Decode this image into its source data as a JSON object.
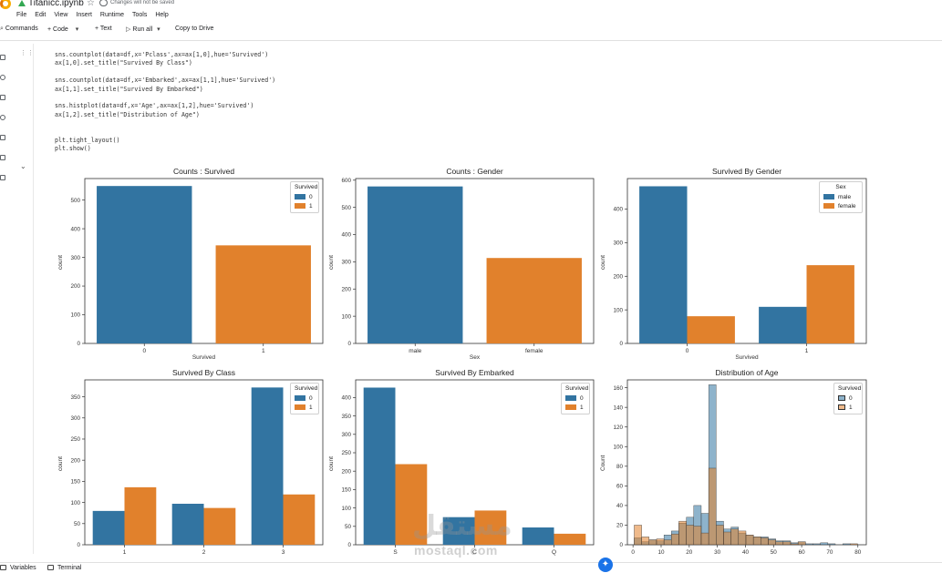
{
  "app": {
    "title": "Titanicc.ipynb",
    "save_status": "Changes will not be saved",
    "logo_icon": "colab-logo",
    "drive_icon": "google-drive-icon",
    "star_icon": "star-icon",
    "cloud_icon": "cloud-off-icon"
  },
  "menu": [
    "File",
    "Edit",
    "View",
    "Insert",
    "Runtime",
    "Tools",
    "Help"
  ],
  "toolbar": {
    "commands": "Commands",
    "code": "+ Code",
    "text": "+ Text",
    "run_all": "Run all",
    "copy_to_drive": "Copy to Drive"
  },
  "code_lines": [
    "sns.countplot(data=df,x='Pclass',ax=ax[1,0],hue='Survived')",
    "ax[1,0].set_title(\"Survived By Class\")",
    "",
    "sns.countplot(data=df,x='Embarked',ax=ax[1,1],hue='Survived')",
    "ax[1,1].set_title(\"Survived By Embarked\")",
    "",
    "sns.histplot(data=df,x='Age',ax=ax[1,2],hue='Survived')",
    "ax[1,2].set_title(\"Distribution of Age\")",
    "",
    "",
    "plt.tight_layout()",
    "plt.show()"
  ],
  "colors": {
    "blue": "#3274a1",
    "orange": "#e1812c"
  },
  "chart_data": [
    {
      "type": "bar",
      "title": "Counts : Survived",
      "xlabel": "Survived",
      "ylabel": "count",
      "categories": [
        "0",
        "1"
      ],
      "series": [
        {
          "values": [
            549,
            342
          ]
        }
      ],
      "bar_colors": [
        "#3274a1",
        "#e1812c"
      ],
      "ylim": [
        0,
        575
      ],
      "yticks": [
        0,
        100,
        200,
        300,
        400,
        500
      ],
      "legend": {
        "title": "Survived",
        "labels": [
          "0",
          "1"
        ],
        "position": "top-right"
      }
    },
    {
      "type": "bar",
      "title": "Counts : Gender",
      "xlabel": "Sex",
      "ylabel": "count",
      "categories": [
        "male",
        "female"
      ],
      "series": [
        {
          "values": [
            577,
            314
          ]
        }
      ],
      "bar_colors": [
        "#3274a1",
        "#e1812c"
      ],
      "ylim": [
        0,
        606
      ],
      "yticks": [
        0,
        100,
        200,
        300,
        400,
        500,
        600
      ]
    },
    {
      "type": "bar",
      "title": "Survived By Gender",
      "xlabel": "Survived",
      "ylabel": "count",
      "categories": [
        "0",
        "1"
      ],
      "series": [
        {
          "name": "male",
          "values": [
            468,
            109
          ]
        },
        {
          "name": "female",
          "values": [
            81,
            233
          ]
        }
      ],
      "ylim": [
        0,
        491
      ],
      "yticks": [
        0,
        100,
        200,
        300,
        400
      ],
      "legend": {
        "title": "Sex",
        "labels": [
          "male",
          "female"
        ],
        "position": "top-right"
      }
    },
    {
      "type": "bar",
      "title": "Survived By Class",
      "xlabel": "",
      "ylabel": "count",
      "categories": [
        "1",
        "2",
        "3"
      ],
      "series": [
        {
          "name": "0",
          "values": [
            80,
            97,
            372
          ]
        },
        {
          "name": "1",
          "values": [
            136,
            87,
            119
          ]
        }
      ],
      "ylim": [
        0,
        390
      ],
      "yticks": [
        0,
        50,
        100,
        150,
        200,
        250,
        300,
        350
      ],
      "legend": {
        "title": "Survived",
        "labels": [
          "0",
          "1"
        ],
        "position": "top-right"
      }
    },
    {
      "type": "bar",
      "title": "Survived By Embarked",
      "xlabel": "",
      "ylabel": "count",
      "categories": [
        "S",
        "C",
        "Q"
      ],
      "series": [
        {
          "name": "0",
          "values": [
            427,
            75,
            47
          ]
        },
        {
          "name": "1",
          "values": [
            219,
            93,
            30
          ]
        }
      ],
      "ylim": [
        0,
        448
      ],
      "yticks": [
        0,
        50,
        100,
        150,
        200,
        250,
        300,
        350,
        400
      ],
      "legend": {
        "title": "Survived",
        "labels": [
          "0",
          "1"
        ],
        "position": "top-right"
      }
    },
    {
      "type": "histogram",
      "title": "Distribution of Age",
      "xlabel": "",
      "ylabel": "Count",
      "xlim": [
        -2,
        83
      ],
      "xticks": [
        0,
        10,
        20,
        30,
        40,
        50,
        60,
        70,
        80
      ],
      "ylim": [
        0,
        168
      ],
      "yticks": [
        0,
        20,
        40,
        60,
        80,
        100,
        120,
        140,
        160
      ],
      "bin_start": 0.42,
      "bin_width": 2.65,
      "series": [
        {
          "name": "0",
          "values": [
            7,
            3,
            5,
            4,
            10,
            14,
            22,
            28,
            40,
            32,
            163,
            24,
            16,
            18,
            12,
            10,
            8,
            8,
            6,
            4,
            4,
            2,
            3,
            1,
            1,
            2,
            1,
            0,
            1,
            0
          ]
        },
        {
          "name": "1",
          "values": [
            20,
            8,
            5,
            6,
            5,
            11,
            24,
            20,
            19,
            12,
            78,
            20,
            13,
            16,
            14,
            10,
            8,
            7,
            5,
            3,
            3,
            1,
            3,
            0,
            0,
            0,
            0,
            0,
            0,
            1
          ]
        }
      ],
      "legend": {
        "title": "Survived",
        "labels": [
          "0",
          "1"
        ],
        "position": "top-right"
      }
    }
  ],
  "watermark": {
    "arabic": "مستقل",
    "latin": "mostaql.com"
  },
  "statusbar": {
    "variables": "Variables",
    "terminal": "Terminal"
  }
}
